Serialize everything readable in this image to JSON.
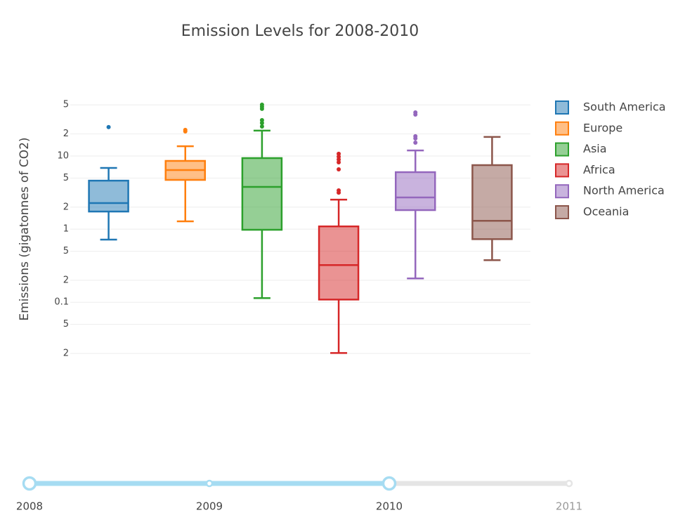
{
  "chart_data": {
    "type": "box",
    "title": "Emission Levels for 2008-2010",
    "y_label": "Emissions (gigatonnes of CO2)",
    "log_y": true,
    "grid": true,
    "legend": "right",
    "ylim": [
      0.015,
      70
    ],
    "yticks": [
      {
        "value": 50,
        "label": "5"
      },
      {
        "value": 20,
        "label": "2"
      },
      10,
      5,
      2,
      1,
      {
        "value": 0.5,
        "label": "5"
      },
      {
        "value": 0.2,
        "label": "2"
      },
      0.1,
      {
        "value": 0.05,
        "label": "5"
      },
      {
        "value": 0.02,
        "label": "2"
      }
    ],
    "series": [
      {
        "name": "South America",
        "color": "#1f77b4",
        "lower": 0.72,
        "q1": 1.74,
        "median": 2.27,
        "q3": 4.6,
        "upper": 6.87,
        "outliers": [
          24.8
        ]
      },
      {
        "name": "Europe",
        "color": "#ff7f0e",
        "lower": 1.28,
        "q1": 4.71,
        "median": 6.42,
        "q3": 8.57,
        "upper": 13.6,
        "outliers": [
          22.7,
          21.7
        ]
      },
      {
        "name": "Asia",
        "color": "#2ca02c",
        "lower": 0.114,
        "q1": 0.98,
        "median": 3.78,
        "q3": 9.36,
        "upper": 22.2,
        "outliers": [
          50.3,
          47.1,
          44.1,
          30.9,
          28.3,
          25.3
        ]
      },
      {
        "name": "Africa",
        "color": "#d62728",
        "lower": 0.0203,
        "q1": 0.109,
        "median": 0.323,
        "q3": 1.09,
        "upper": 2.53,
        "outliers": [
          10.7,
          9.78,
          8.95,
          8.2,
          6.57,
          3.38,
          3.16
        ]
      },
      {
        "name": "North America",
        "color": "#9467bd",
        "lower": 0.212,
        "q1": 1.82,
        "median": 2.71,
        "q3": 6.01,
        "upper": 11.9,
        "outliers": [
          39.4,
          36.9,
          18.6,
          17.4,
          15.2
        ]
      },
      {
        "name": "Oceania",
        "color": "#8c564b",
        "lower": 0.377,
        "q1": 0.73,
        "median": 1.3,
        "q3": 7.5,
        "upper": 18.2,
        "outliers": []
      }
    ],
    "slider": {
      "steps": [
        2008,
        2009,
        2010,
        2011
      ],
      "range": [
        2008,
        2010
      ]
    }
  }
}
